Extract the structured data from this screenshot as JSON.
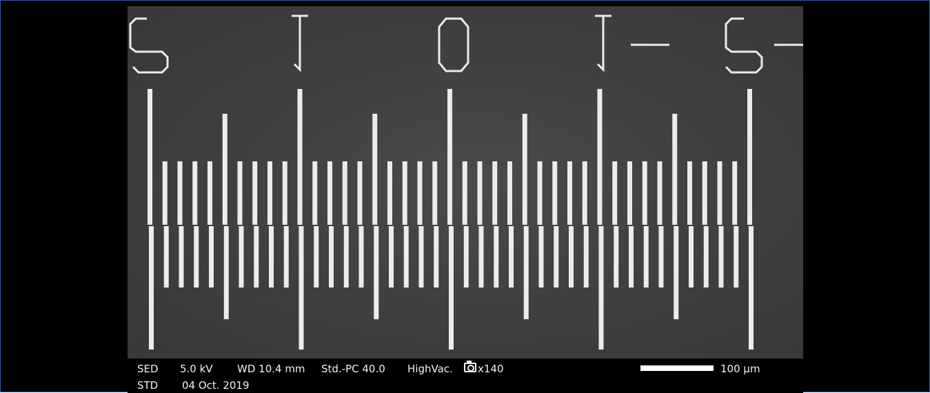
{
  "image": {
    "subject": "SEM micrograph of a vernier scale pattern",
    "background_color": "#3f3f3f",
    "feature_color": "#ececec",
    "digits": [
      "2",
      "1",
      "0",
      "1",
      "2"
    ],
    "minus_sign": "-"
  },
  "infobar": {
    "detector": "SED",
    "voltage": "5.0 kV",
    "working_distance": "WD 10.4 mm",
    "probe_current": "Std.-PC 40.0",
    "vacuum": "HighVac.",
    "magnification": "x140",
    "scale_label": "100 µm",
    "mode": "STD",
    "date": "04 Oct. 2019",
    "camera_icon": "camera-icon"
  }
}
